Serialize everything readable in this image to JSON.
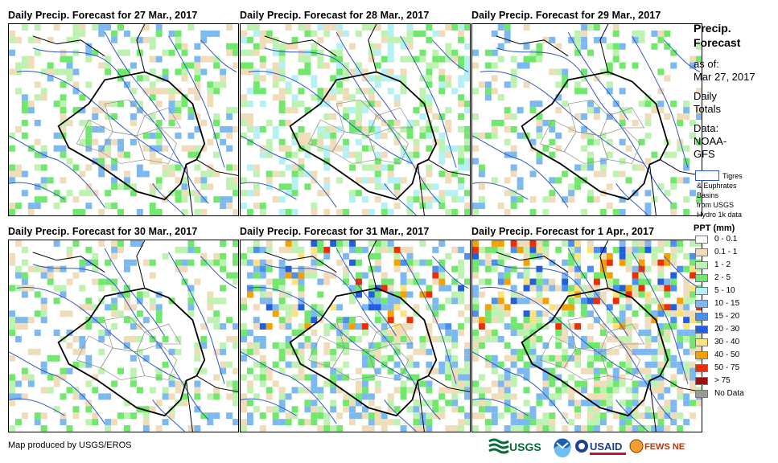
{
  "panels": [
    {
      "title": "Daily Precip. Forecast for 27 Mar., 2017"
    },
    {
      "title": "Daily Precip. Forecast for 28 Mar., 2017"
    },
    {
      "title": "Daily Precip. Forecast for 29 Mar., 2017"
    },
    {
      "title": "Daily Precip. Forecast for 30 Mar., 2017"
    },
    {
      "title": "Daily Precip. Forecast for 31 Mar., 2017"
    },
    {
      "title": "Daily Precip. Forecast for 1 Apr., 2017"
    }
  ],
  "legend": {
    "title_line1": "Precip.",
    "title_line2": "Forecast",
    "asof_label": "as of:",
    "asof_date": "Mar 27, 2017",
    "daily_line1": "Daily",
    "daily_line2": "Totals",
    "data_line1": "Data:",
    "data_line2": "NOAA-",
    "data_line3": "GFS",
    "basin_line1": "Tigres",
    "basin_line2": "& Euphrates",
    "basin_line3": "Basins",
    "basin_line4": "from USGS",
    "basin_line5": "Hydro 1k data",
    "ppt_title": "PPT (mm)",
    "ppt_classes": [
      {
        "label": "0 - 0.1",
        "color": "#ffffff"
      },
      {
        "label": "0.1 - 1",
        "color": "#f1dcba"
      },
      {
        "label": "1 - 2",
        "color": "#bdf2b0"
      },
      {
        "label": "2 - 5",
        "color": "#6fe86b"
      },
      {
        "label": "5 - 10",
        "color": "#b5f0f5"
      },
      {
        "label": "10 - 15",
        "color": "#7bb9f0"
      },
      {
        "label": "15 - 20",
        "color": "#4b8ff0"
      },
      {
        "label": "20 - 30",
        "color": "#1f5fe0"
      },
      {
        "label": "30 - 40",
        "color": "#ffe27a"
      },
      {
        "label": "40 - 50",
        "color": "#f5a200"
      },
      {
        "label": "50 - 75",
        "color": "#ef2d05"
      },
      {
        "label": "> 75",
        "color": "#a00e0e"
      },
      {
        "label": "No Data",
        "color": "#9a9a9a"
      }
    ]
  },
  "footer": {
    "credit": "Map produced by USGS/EROS",
    "logo_usgs": "USGS",
    "logo_usaid": "USAID",
    "logo_fewsnet": "FEWS NET"
  }
}
